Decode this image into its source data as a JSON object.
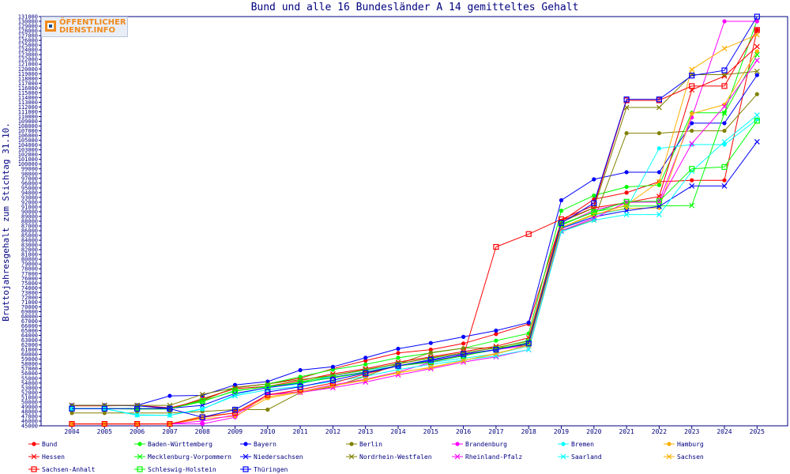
{
  "chart_data": {
    "type": "line",
    "title": "Bund und alle 16 Bundesländer A 14 gemitteltes Gehalt",
    "xlabel": "",
    "ylabel": "Bruttojahresgehalt zum Stichtag 31.10.",
    "ylim": [
      45000,
      131000
    ],
    "ytick_step": 1000,
    "grid": false,
    "legend_position": "bottom",
    "categories": [
      "2004",
      "2005",
      "2006",
      "2007",
      "2008",
      "2009",
      "2010",
      "2011",
      "2012",
      "2013",
      "2014",
      "2015",
      "2016",
      "2017",
      "2018",
      "2019",
      "2020",
      "2021",
      "2022",
      "2023",
      "2024",
      "2025"
    ],
    "series": [
      {
        "name": "Bund",
        "color": "#ff0000",
        "marker": "dot",
        "values": [
          49200,
          49200,
          49300,
          48800,
          50300,
          53100,
          53800,
          55000,
          57000,
          58700,
          60300,
          61000,
          62300,
          64300,
          66400,
          88000,
          92600,
          94000,
          96300,
          96600,
          96600,
          128200
        ]
      },
      {
        "name": "Baden-Württemberg",
        "color": "#00ff00",
        "marker": "dot",
        "values": [
          48600,
          48600,
          48500,
          48500,
          50500,
          53000,
          53800,
          55300,
          56800,
          57900,
          59300,
          60300,
          61300,
          62900,
          64400,
          90200,
          93400,
          95200,
          95600,
          110800,
          110800,
          130200
        ]
      },
      {
        "name": "Bayern",
        "color": "#0000ff",
        "marker": "dot",
        "values": [
          49300,
          49300,
          49300,
          51300,
          51400,
          53600,
          54300,
          56700,
          57400,
          59300,
          61200,
          62400,
          63700,
          65000,
          66700,
          92400,
          96800,
          98300,
          98300,
          108600,
          108600,
          118700
        ]
      },
      {
        "name": "Berlin",
        "color": "#808000",
        "marker": "dot",
        "values": [
          47700,
          47700,
          47700,
          47700,
          48000,
          48400,
          48400,
          52000,
          53200,
          55400,
          58000,
          60400,
          61300,
          61400,
          62000,
          85900,
          88300,
          106500,
          106500,
          107000,
          107000,
          114700
        ]
      },
      {
        "name": "Brandenburg",
        "color": "#ff00ff",
        "marker": "dot",
        "values": [
          45400,
          45400,
          45400,
          45400,
          45400,
          46800,
          51600,
          52200,
          53600,
          54800,
          56300,
          58300,
          60000,
          61000,
          61900,
          87100,
          90300,
          91900,
          92200,
          109800,
          130000,
          130000
        ]
      },
      {
        "name": "Bremen",
        "color": "#00ffff",
        "marker": "dot",
        "values": [
          48600,
          48600,
          47200,
          47200,
          48500,
          51500,
          53100,
          53800,
          55500,
          56700,
          57600,
          58300,
          59200,
          60100,
          61800,
          86500,
          89300,
          90600,
          103300,
          104100,
          104100,
          109400
        ]
      },
      {
        "name": "Hamburg",
        "color": "#ffb000",
        "marker": "dot",
        "values": [
          45400,
          45400,
          45400,
          45400,
          46500,
          47000,
          50800,
          52100,
          53400,
          54600,
          56200,
          57200,
          58700,
          60100,
          62000,
          86700,
          89500,
          90700,
          90800,
          110600,
          112500,
          123700
        ]
      },
      {
        "name": "Hessen",
        "color": "#ff0000",
        "marker": "x",
        "values": [
          49300,
          49300,
          49300,
          48500,
          50700,
          52800,
          53300,
          54500,
          55900,
          57000,
          58400,
          59500,
          60600,
          61700,
          63500,
          88100,
          90800,
          91900,
          93200,
          115600,
          118500,
          124700
        ]
      },
      {
        "name": "Mecklenburg-Vorpommern",
        "color": "#00ff00",
        "marker": "x",
        "values": [
          48600,
          48600,
          48600,
          48600,
          50100,
          52400,
          53200,
          54200,
          55600,
          56700,
          58100,
          59200,
          60300,
          61400,
          62900,
          87200,
          90000,
          91200,
          91200,
          91300,
          110700,
          123000
        ]
      },
      {
        "name": "Niedersachsen",
        "color": "#0000ff",
        "marker": "x",
        "values": [
          49300,
          49300,
          49200,
          48700,
          49300,
          51800,
          53000,
          54000,
          55200,
          56300,
          57600,
          58700,
          59800,
          61000,
          62400,
          86500,
          88900,
          90200,
          91100,
          95400,
          95400,
          104700
        ]
      },
      {
        "name": "Nordrhein-Westfalen",
        "color": "#808000",
        "marker": "x",
        "values": [
          49300,
          49300,
          49300,
          49300,
          51600,
          53000,
          53800,
          54700,
          55600,
          56800,
          58000,
          59300,
          60300,
          61400,
          62800,
          87800,
          90800,
          111900,
          111900,
          118800,
          118800,
          119500
        ]
      },
      {
        "name": "Rheinland-Pfalz",
        "color": "#ff00ff",
        "marker": "x",
        "values": [
          45400,
          45400,
          45400,
          45400,
          46000,
          47300,
          51500,
          52000,
          53000,
          54200,
          55700,
          57000,
          58400,
          59500,
          61000,
          86000,
          88600,
          92000,
          92000,
          104300,
          112100,
          121800
        ]
      },
      {
        "name": "Saarland",
        "color": "#00ffff",
        "marker": "x",
        "values": [
          48600,
          48600,
          47300,
          47200,
          48600,
          51300,
          52600,
          53300,
          54300,
          55400,
          56800,
          57900,
          58800,
          59700,
          61000,
          85800,
          88200,
          89400,
          89400,
          98500,
          104700,
          110300
        ]
      },
      {
        "name": "Sachsen",
        "color": "#ffb000",
        "marker": "x",
        "values": [
          45400,
          45400,
          45400,
          45400,
          47000,
          47700,
          51100,
          52200,
          53400,
          54700,
          56100,
          57300,
          58700,
          60200,
          61900,
          86700,
          89300,
          91400,
          96300,
          119900,
          124300,
          127200
        ]
      },
      {
        "name": "Sachsen-Anhalt",
        "color": "#ff0000",
        "marker": "square",
        "values": [
          45400,
          45400,
          45400,
          45400,
          46800,
          47700,
          51500,
          52600,
          54000,
          55900,
          57600,
          58400,
          59700,
          82600,
          85300,
          88400,
          91300,
          113400,
          113400,
          116400,
          116400,
          128200
        ]
      },
      {
        "name": "Schleswig-Holstein",
        "color": "#00ff00",
        "marker": "square",
        "values": [
          48600,
          48600,
          48600,
          48600,
          50200,
          52300,
          53300,
          54100,
          55100,
          56200,
          57600,
          58500,
          59700,
          61100,
          62500,
          87400,
          89900,
          92100,
          92200,
          99000,
          99400,
          109100
        ]
      },
      {
        "name": "Thüringen",
        "color": "#0000ff",
        "marker": "square",
        "values": [
          48600,
          48600,
          48600,
          48600,
          46800,
          48400,
          52100,
          53200,
          54600,
          56100,
          57600,
          58900,
          60100,
          61000,
          62300,
          87600,
          91800,
          113600,
          113600,
          118600,
          119700,
          131000
        ]
      }
    ]
  },
  "logo": {
    "line1": "ÖFFENTLICHER",
    "line2": "DIENST.INFO"
  }
}
